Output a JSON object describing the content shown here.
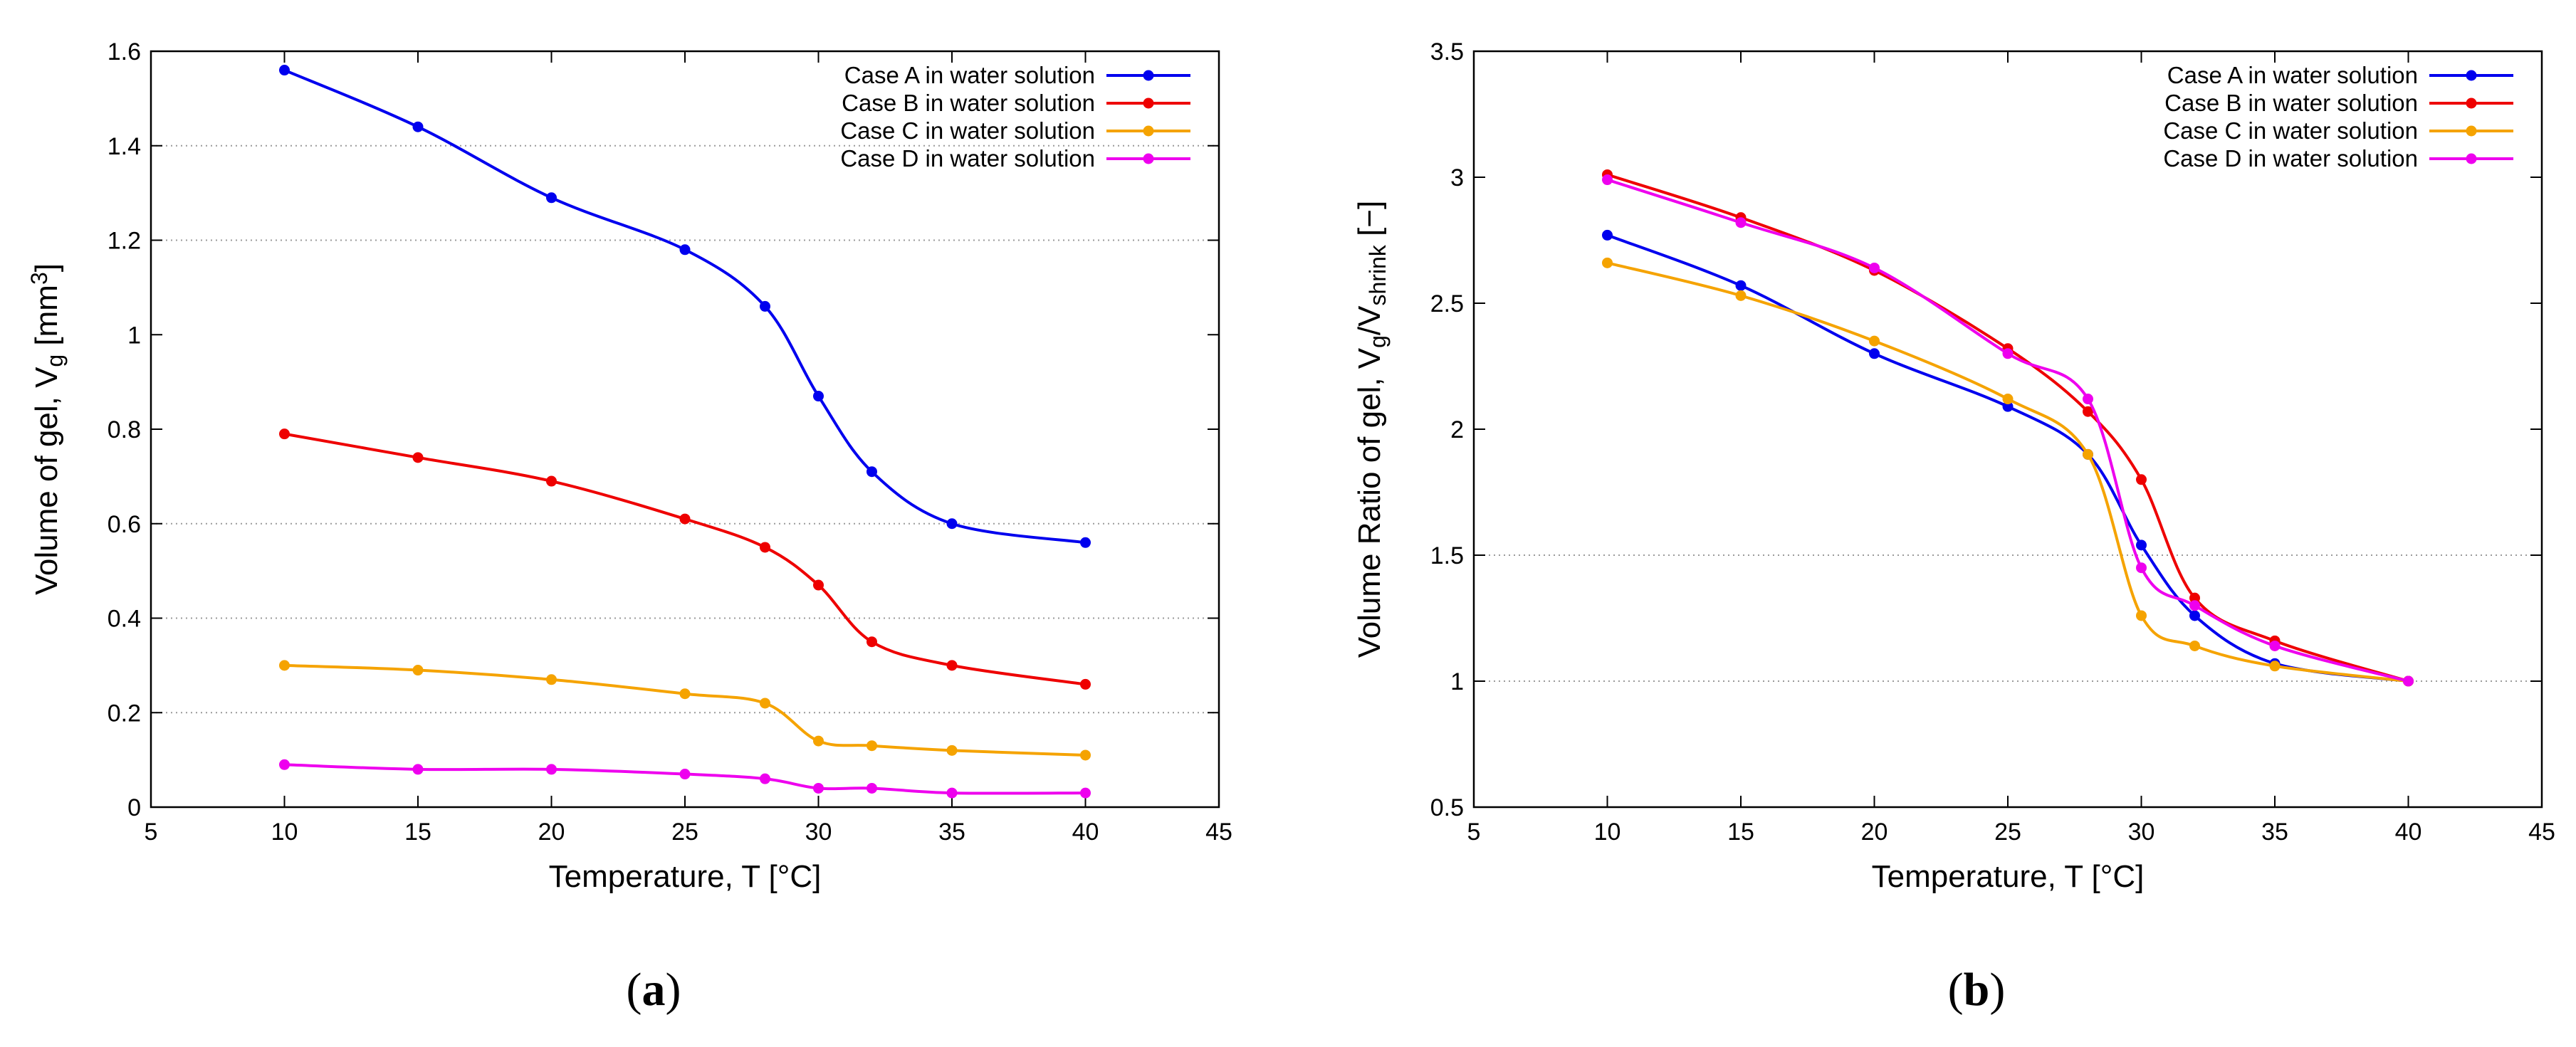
{
  "figure": {
    "panel_a": "a",
    "panel_b": "b"
  },
  "chart_data": [
    {
      "type": "line",
      "panel": "a",
      "title": "",
      "xlabel": "Temperature, T [°C]",
      "ylabel": {
        "main": "Volume of gel, V",
        "sub": "g",
        "unit_open": " [mm",
        "sup": "3",
        "unit_close": "]"
      },
      "xlim": [
        5,
        45
      ],
      "ylim": [
        0,
        1.6
      ],
      "xticks": [
        5,
        10,
        15,
        20,
        25,
        30,
        35,
        40,
        45
      ],
      "yticks": [
        0,
        0.2,
        0.4,
        0.6,
        0.8,
        1,
        1.2,
        1.4,
        1.6
      ],
      "grid_y": [
        0.2,
        0.4,
        0.6,
        1.2,
        1.4
      ],
      "legend_position": "top-right",
      "x": [
        10,
        15,
        20,
        25,
        28,
        30,
        32,
        35,
        40
      ],
      "series": [
        {
          "name": "Case A in water solution",
          "color": "#0000ee",
          "values": [
            1.56,
            1.44,
            1.29,
            1.18,
            1.06,
            0.87,
            0.71,
            0.6,
            0.56
          ]
        },
        {
          "name": "Case B in water solution",
          "color": "#ee0000",
          "values": [
            0.79,
            0.74,
            0.69,
            0.61,
            0.55,
            0.47,
            0.35,
            0.3,
            0.26
          ]
        },
        {
          "name": "Case C in water solution",
          "color": "#f5a300",
          "values": [
            0.3,
            0.29,
            0.27,
            0.24,
            0.22,
            0.14,
            0.13,
            0.12,
            0.11
          ]
        },
        {
          "name": "Case D in water solution",
          "color": "#ee00ee",
          "values": [
            0.09,
            0.08,
            0.08,
            0.07,
            0.06,
            0.04,
            0.04,
            0.03,
            0.03
          ]
        }
      ]
    },
    {
      "type": "line",
      "panel": "b",
      "title": "",
      "xlabel": "Temperature, T [°C]",
      "ylabel": {
        "main": "Volume Ratio of gel, V",
        "sub1": "g",
        "slash": "/V",
        "sub2": "shrink",
        "unit": " [−]"
      },
      "xlim": [
        5,
        45
      ],
      "ylim": [
        0.5,
        3.5
      ],
      "xticks": [
        5,
        10,
        15,
        20,
        25,
        30,
        35,
        40,
        45
      ],
      "yticks": [
        0.5,
        1,
        1.5,
        2,
        2.5,
        3,
        3.5
      ],
      "grid_y": [
        1,
        1.5
      ],
      "legend_position": "top-right",
      "x": [
        10,
        15,
        20,
        25,
        28,
        30,
        32,
        35,
        40
      ],
      "series": [
        {
          "name": "Case A in water solution",
          "color": "#0000ee",
          "values": [
            2.77,
            2.57,
            2.3,
            2.09,
            1.9,
            1.54,
            1.26,
            1.07,
            1.0
          ]
        },
        {
          "name": "Case B in water solution",
          "color": "#ee0000",
          "values": [
            3.01,
            2.84,
            2.63,
            2.32,
            2.07,
            1.8,
            1.33,
            1.16,
            1.0
          ]
        },
        {
          "name": "Case C in water solution",
          "color": "#f5a300",
          "values": [
            2.66,
            2.53,
            2.35,
            2.12,
            1.9,
            1.26,
            1.14,
            1.06,
            1.0
          ]
        },
        {
          "name": "Case D in water solution",
          "color": "#ee00ee",
          "values": [
            2.99,
            2.82,
            2.64,
            2.3,
            2.12,
            1.45,
            1.3,
            1.14,
            1.0
          ]
        }
      ]
    }
  ]
}
